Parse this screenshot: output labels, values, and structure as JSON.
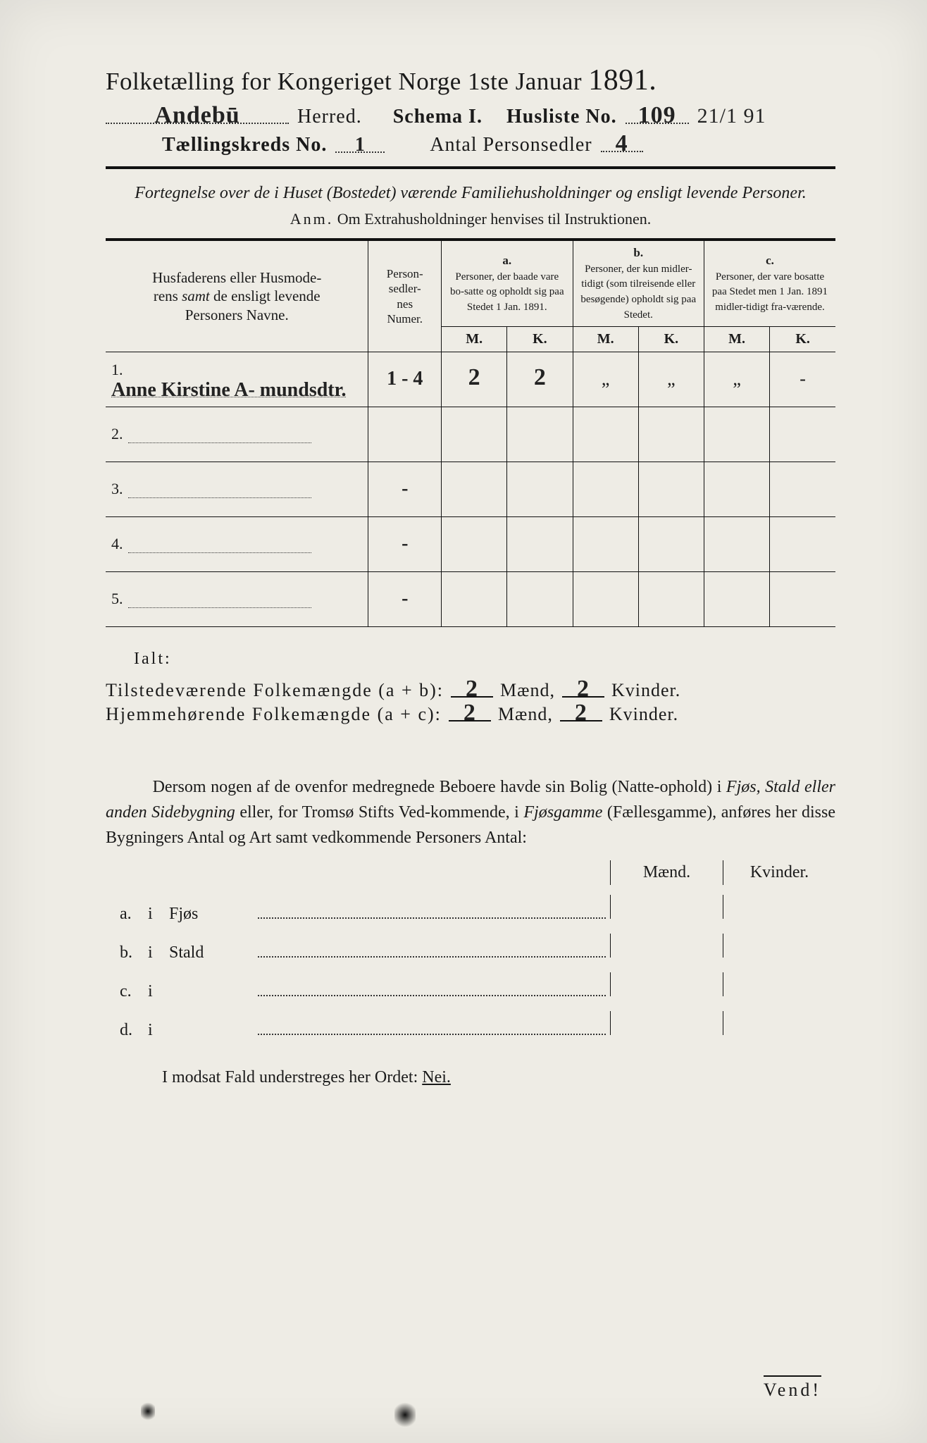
{
  "title": {
    "main_prefix": "Folketælling for Kongeriget Norge 1ste Januar",
    "year": "1891."
  },
  "header": {
    "herred_hand": "Andebū",
    "herred_label": "Herred.",
    "schema_label": "Schema I.",
    "husliste_label": "Husliste No.",
    "husliste_no_hand": "109",
    "corner_date_hand": "21/1 91",
    "kreds_label": "Tællingskreds No.",
    "kreds_no_hand": "1",
    "antal_label": "Antal Personsedler",
    "antal_hand": "4"
  },
  "intro": {
    "fortext": "Fortegnelse over de i Huset (Bostedet) værende Familiehusholdninger og ensligt levende Personer.",
    "anm_label": "Anm.",
    "anm_text": "Om Extrahusholdninger henvises til Instruktionen."
  },
  "table": {
    "col_name": "Husfaderens eller Husmoderens samt de ensligt levende Personers Navne.",
    "col_num": "Person-\nsedler-\nnes\nNumer.",
    "col_a_label": "a.",
    "col_a": "Personer, der baade vare bo-satte og opholdt sig paa Stedet 1 Jan. 1891.",
    "col_b_label": "b.",
    "col_b": "Personer, der kun midler-tidigt (som tilreisende eller besøgende) opholdt sig paa Stedet.",
    "col_c_label": "c.",
    "col_c": "Personer, der vare bosatte paa Stedet men 1 Jan. 1891 midler-tidigt fra-værende.",
    "mk_m": "M.",
    "mk_k": "K.",
    "rows": [
      {
        "n": "1.",
        "name_hand": "Anne Kirstine A-\nmundsdtr.",
        "num_hand": "1 - 4",
        "a_m": "2",
        "a_k": "2",
        "b_m": "„",
        "b_k": "„",
        "c_m": "„",
        "c_k": "-"
      },
      {
        "n": "2.",
        "name_hand": "",
        "num_hand": "",
        "a_m": "",
        "a_k": "",
        "b_m": "",
        "b_k": "",
        "c_m": "",
        "c_k": ""
      },
      {
        "n": "3.",
        "name_hand": "",
        "num_hand": "-",
        "a_m": "",
        "a_k": "",
        "b_m": "",
        "b_k": "",
        "c_m": "",
        "c_k": ""
      },
      {
        "n": "4.",
        "name_hand": "",
        "num_hand": "-",
        "a_m": "",
        "a_k": "",
        "b_m": "",
        "b_k": "",
        "c_m": "",
        "c_k": ""
      },
      {
        "n": "5.",
        "name_hand": "",
        "num_hand": "-",
        "a_m": "",
        "a_k": "",
        "b_m": "",
        "b_k": "",
        "c_m": "",
        "c_k": ""
      }
    ]
  },
  "totals": {
    "ialt_label": "Ialt:",
    "line1_label": "Tilstedeværende Folkemængde (a + b):",
    "line2_label": "Hjemmehørende Folkemængde (a + c):",
    "maend": "Mænd,",
    "kvinder": "Kvinder.",
    "l1_m": "2",
    "l1_k": "2",
    "l2_m": "2",
    "l2_k": "2"
  },
  "dersom": {
    "text1": "Dersom nogen af de ovenfor medregnede Beboere havde sin Bolig (Natte-ophold) i ",
    "em1": "Fjøs, Stald eller anden Sidebygning",
    "text2": " eller, for Tromsø Stifts Ved-kommende, i ",
    "em2": "Fjøsgamme",
    "text3": " (Fællesgamme), anføres her disse Bygningers Antal og Art samt vedkommende Personers Antal:",
    "mk_m": "Mænd.",
    "mk_k": "Kvinder.",
    "rows": [
      {
        "tag": "a.",
        "i": "i",
        "label": "Fjøs"
      },
      {
        "tag": "b.",
        "i": "i",
        "label": "Stald"
      },
      {
        "tag": "c.",
        "i": "i",
        "label": ""
      },
      {
        "tag": "d.",
        "i": "i",
        "label": ""
      }
    ]
  },
  "nei": {
    "text_pre": "I modsat Fald understreges her Ordet: ",
    "nei": "Nei."
  },
  "vend": "Vend!",
  "colors": {
    "paper": "#eeece5",
    "ink": "#1a1a1a",
    "hand": "#222222"
  }
}
